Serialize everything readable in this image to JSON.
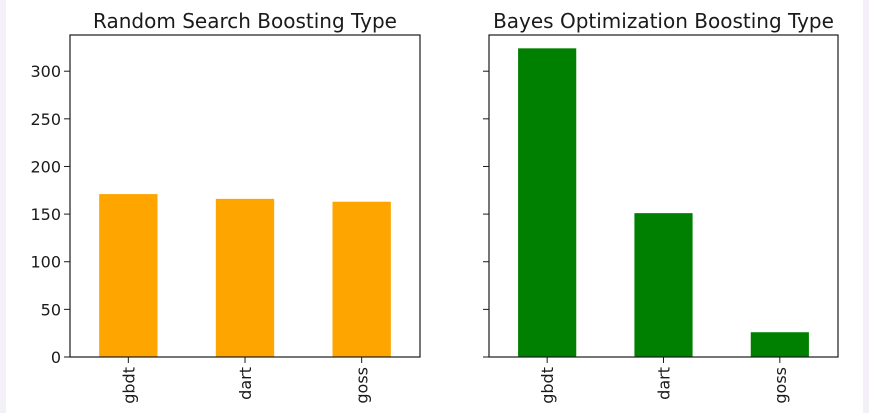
{
  "chart_data": [
    {
      "type": "bar",
      "title": "Random Search Boosting Type",
      "categories": [
        "gbdt",
        "dart",
        "goss"
      ],
      "values": [
        171,
        166,
        163
      ],
      "yticks": [
        0,
        50,
        100,
        150,
        200,
        250,
        300
      ],
      "ylim": [
        0,
        338
      ],
      "color": "#ffa500",
      "show_ytick_labels": true,
      "grid": false
    },
    {
      "type": "bar",
      "title": "Bayes Optimization Boosting Type",
      "categories": [
        "gbdt",
        "dart",
        "goss"
      ],
      "values": [
        324,
        151,
        26
      ],
      "yticks": [
        0,
        50,
        100,
        150,
        200,
        250,
        300
      ],
      "ylim": [
        0,
        338
      ],
      "color": "#008000",
      "show_ytick_labels": false,
      "grid": false
    }
  ]
}
